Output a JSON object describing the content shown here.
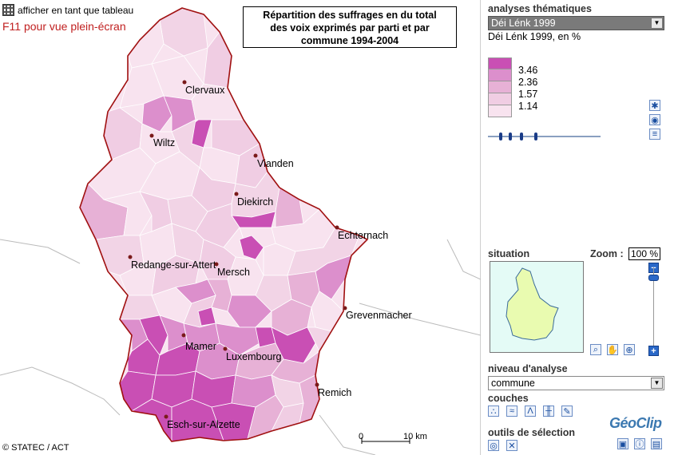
{
  "map": {
    "table_toggle_label": "afficher en tant que tableau",
    "fullscreen_hint": "F11 pour vue plein-écran",
    "title_line1": "Répartition des suffrages en du total",
    "title_line2": "des voix exprimés par parti et par",
    "title_line3": "commune 1994-2004",
    "copyright": "© STATEC / ACT",
    "scale_zero": "0",
    "scale_ten": "10 km",
    "cities": [
      {
        "name": "Clervaux"
      },
      {
        "name": "Wiltz"
      },
      {
        "name": "Vianden"
      },
      {
        "name": "Diekirch"
      },
      {
        "name": "Echternach"
      },
      {
        "name": "Redange-sur-Attert"
      },
      {
        "name": "Mersch"
      },
      {
        "name": "Grevenmacher"
      },
      {
        "name": "Mamer"
      },
      {
        "name": "Luxembourg"
      },
      {
        "name": "Remich"
      },
      {
        "name": "Esch-sur-Alzette"
      }
    ]
  },
  "sidebar": {
    "thematic_title": "analyses thématiques",
    "thematic_selected": "Déi Lénk 1999",
    "indicator_subtitle": "Déi Lénk 1999, en %",
    "legend": {
      "colors": [
        "#c94fb4",
        "#dc8fcc",
        "#e7b1d6",
        "#f0cde3",
        "#f8e3ef"
      ],
      "thresholds": [
        "3.46",
        "2.36",
        "1.57",
        "1.14"
      ]
    },
    "situation_title": "situation",
    "zoom_label": "Zoom :",
    "zoom_value": "100 %",
    "zoom_minus": "−",
    "zoom_plus": "+",
    "level_title": "niveau d'analyse",
    "level_selected": "commune",
    "layers_title": "couches",
    "selection_title": "outils de sélection",
    "logo_text": "GéoClip"
  }
}
